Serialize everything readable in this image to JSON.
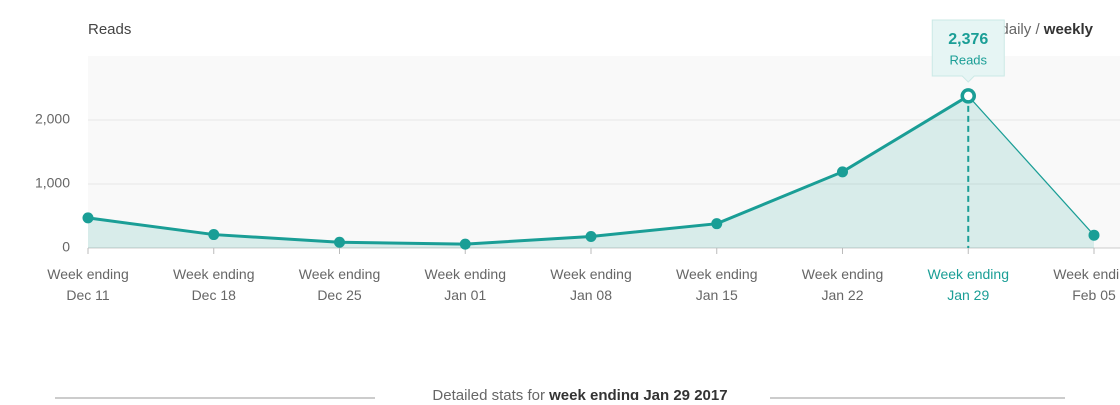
{
  "chart_data": {
    "type": "line",
    "title": "Reads",
    "toggle": [
      "daily",
      "/",
      "weekly"
    ],
    "categories": [
      [
        "Week ending",
        "Dec 11"
      ],
      [
        "Week ending",
        "Dec 18"
      ],
      [
        "Week ending",
        "Dec 25"
      ],
      [
        "Week ending",
        "Jan 01"
      ],
      [
        "Week ending",
        "Jan 08"
      ],
      [
        "Week ending",
        "Jan 15"
      ],
      [
        "Week ending",
        "Jan 22"
      ],
      [
        "Week ending",
        "Jan 29"
      ],
      [
        "Week ending",
        "Feb 05"
      ]
    ],
    "values": [
      470,
      210,
      90,
      60,
      180,
      380,
      1190,
      2376,
      200
    ],
    "value_labels": [
      null,
      null,
      null,
      null,
      null,
      null,
      null,
      "2,376",
      null
    ],
    "tooltip_label": "Reads",
    "color": "#1a9e96",
    "ylim": [
      0,
      3000
    ],
    "yticks": [
      0,
      {
        "value": 1000,
        "label": "1,000"
      },
      {
        "value": 2000,
        "label": "2,000"
      }
    ],
    "grid": true
  },
  "detail": {
    "prefix": "Detailed stats for",
    "emphasis": "week ending Jan 29 2017"
  }
}
